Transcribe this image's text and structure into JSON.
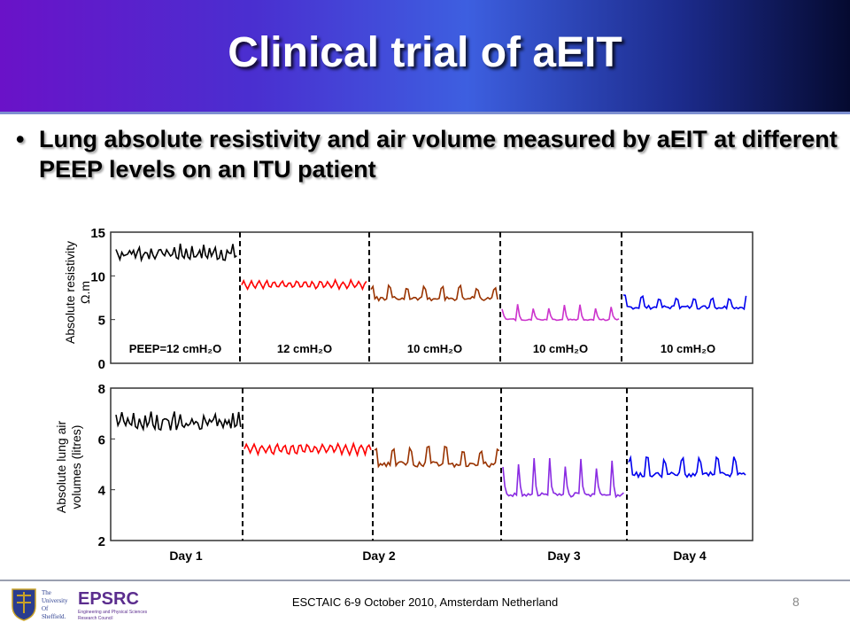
{
  "slide": {
    "title": "Clinical trial of aEIT",
    "bullet": "Lung absolute resistivity and air volume measured by aEIT at different PEEP levels on an ITU patient",
    "bullet_marker": "•"
  },
  "footer": {
    "text": "ESCTAIC 6-9 October 2010, Amsterdam Netherland",
    "page_number": "8",
    "logo_sheffield_text": [
      "The",
      "University",
      "Of",
      "Sheffield."
    ],
    "logo_epsrc_text": "EPSRC",
    "logo_epsrc_subtext": [
      "Engineering and Physical Sciences",
      "Research Council"
    ]
  },
  "colors": {
    "segments": [
      "#000000",
      "#ff0000",
      "#993300",
      "#cc33cc",
      "#0000ee"
    ],
    "volume_day3": "#8a2be2"
  },
  "chart_data": [
    {
      "type": "line",
      "ylabel": [
        "Absolute resistivity",
        "Ω.m"
      ],
      "ylim": [
        0,
        15
      ],
      "yticks": [
        "0",
        "5",
        "10",
        "15"
      ],
      "segment_labels": [
        "PEEP=12 cmH₂O",
        "12 cmH₂O",
        "10 cmH₂O",
        "10 cmH₂O",
        "10 cmH₂O"
      ],
      "series": [
        {
          "values": [
            13.5,
            11.2
          ],
          "level": 12.5,
          "amplitude": 1.2,
          "style": "noisy"
        },
        {
          "values": [
            9.5,
            8.5
          ],
          "level": 9.0,
          "amplitude": 0.9,
          "style": "regular"
        },
        {
          "values": [
            8.6,
            6.8
          ],
          "level": 7.4,
          "amplitude": 1.3,
          "style": "peaks"
        },
        {
          "values": [
            6.2,
            4.6
          ],
          "level": 5.0,
          "amplitude": 1.4,
          "style": "spikes"
        },
        {
          "values": [
            7.8,
            6.0
          ],
          "level": 6.4,
          "amplitude": 1.2,
          "style": "peaks"
        }
      ],
      "boundaries": 4,
      "grid": false
    },
    {
      "type": "line",
      "ylabel": [
        "Absolute lung air",
        "volumes (litres)"
      ],
      "ylim": [
        2,
        8
      ],
      "yticks": [
        "2",
        "4",
        "6",
        "8"
      ],
      "xlabels": [
        "Day 1",
        "Day 2",
        "Day 3",
        "Day 4"
      ],
      "series": [
        {
          "values": [
            7.0,
            6.4
          ],
          "level": 6.6,
          "amplitude": 0.5,
          "style": "noisy"
        },
        {
          "values": [
            5.9,
            5.4
          ],
          "level": 5.6,
          "amplitude": 0.4,
          "style": "regular"
        },
        {
          "values": [
            5.8,
            4.6
          ],
          "level": 5.0,
          "amplitude": 0.6,
          "style": "peaks"
        },
        {
          "values": [
            5.1,
            3.6
          ],
          "level": 3.8,
          "amplitude": 1.1,
          "style": "spikes"
        },
        {
          "values": [
            5.2,
            4.4
          ],
          "level": 4.6,
          "amplitude": 0.6,
          "style": "peaks"
        }
      ],
      "boundaries": 4,
      "grid": false
    }
  ]
}
